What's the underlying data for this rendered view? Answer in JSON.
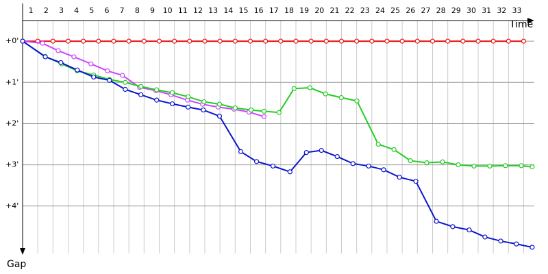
{
  "chart_data": {
    "type": "line",
    "x_label": "Time",
    "y_label": "Gap",
    "xlim": [
      0,
      33.7
    ],
    "ylim": [
      -0.5,
      5.15
    ],
    "xticks": [
      1,
      2,
      3,
      4,
      5,
      6,
      7,
      8,
      9,
      10,
      11,
      12,
      13,
      14,
      15,
      16,
      17,
      18,
      19,
      20,
      21,
      22,
      23,
      24,
      25,
      26,
      27,
      28,
      29,
      30,
      31,
      32,
      33
    ],
    "yticks": [
      {
        "value": 0,
        "label": "+0'"
      },
      {
        "value": 1,
        "label": "+1'"
      },
      {
        "value": 2,
        "label": "+2'"
      },
      {
        "value": 3,
        "label": "+3'"
      },
      {
        "value": 4,
        "label": "+4'"
      }
    ],
    "grid": true,
    "series": [
      {
        "color": "#ee1111",
        "x": [
          0,
          1,
          2,
          3,
          4,
          5,
          6,
          7,
          8,
          9,
          10,
          11,
          12,
          13,
          14,
          15,
          16,
          17,
          18,
          19,
          20,
          21,
          22,
          23,
          24,
          25,
          26,
          27,
          28,
          29,
          30,
          31,
          32,
          33
        ],
        "values": [
          0,
          0,
          0,
          0,
          0,
          0,
          0,
          0,
          0,
          0,
          0,
          0,
          0,
          0,
          0,
          0,
          0,
          0,
          0,
          0,
          0,
          0,
          0,
          0,
          0,
          0,
          0,
          0,
          0,
          0,
          0,
          0,
          0,
          0
        ]
      },
      {
        "color": "#cc44ff",
        "x": [
          0,
          1.31,
          2.34,
          3.38,
          4.5,
          5.59,
          6.58,
          7.7,
          8.78,
          9.77,
          10.86,
          11.85,
          12.88,
          13.92,
          14.91,
          15.9
        ],
        "values": [
          0,
          0.05,
          0.23,
          0.38,
          0.55,
          0.72,
          0.83,
          1.12,
          1.2,
          1.3,
          1.43,
          1.53,
          1.6,
          1.65,
          1.72,
          1.83
        ]
      },
      {
        "color": "#22cc22",
        "x": [
          0,
          1.49,
          2.57,
          3.6,
          4.68,
          5.72,
          6.76,
          7.79,
          8.83,
          9.86,
          10.9,
          11.94,
          12.97,
          14.0,
          15.05,
          15.9,
          16.89,
          17.88,
          18.92,
          19.95,
          20.99,
          22.02,
          23.42,
          24.46,
          25.54,
          26.62,
          27.66,
          28.69,
          29.73,
          30.77,
          31.8,
          32.84,
          33.56
        ],
        "values": [
          0,
          0.37,
          0.55,
          0.72,
          0.82,
          0.93,
          1.0,
          1.1,
          1.18,
          1.25,
          1.35,
          1.47,
          1.53,
          1.62,
          1.67,
          1.7,
          1.73,
          1.15,
          1.13,
          1.28,
          1.37,
          1.45,
          2.5,
          2.63,
          2.9,
          2.95,
          2.93,
          3.0,
          3.03,
          3.03,
          3.02,
          3.02,
          3.05
        ]
      },
      {
        "color": "#0a14cc",
        "x": [
          0,
          1.49,
          2.52,
          3.6,
          4.68,
          5.72,
          6.76,
          7.79,
          8.83,
          9.86,
          10.9,
          11.9,
          12.97,
          14.37,
          15.41,
          16.49,
          17.61,
          18.69,
          19.68,
          20.72,
          21.76,
          22.79,
          23.78,
          24.82,
          25.9,
          27.25,
          28.33,
          29.41,
          30.45,
          31.49,
          32.52,
          33.56
        ],
        "values": [
          0,
          0.38,
          0.52,
          0.7,
          0.87,
          0.95,
          1.17,
          1.3,
          1.43,
          1.52,
          1.6,
          1.67,
          1.82,
          2.68,
          2.92,
          3.03,
          3.17,
          2.7,
          2.65,
          2.8,
          2.97,
          3.03,
          3.12,
          3.3,
          3.4,
          4.37,
          4.5,
          4.58,
          4.75,
          4.85,
          4.92,
          5.0
        ]
      }
    ]
  }
}
